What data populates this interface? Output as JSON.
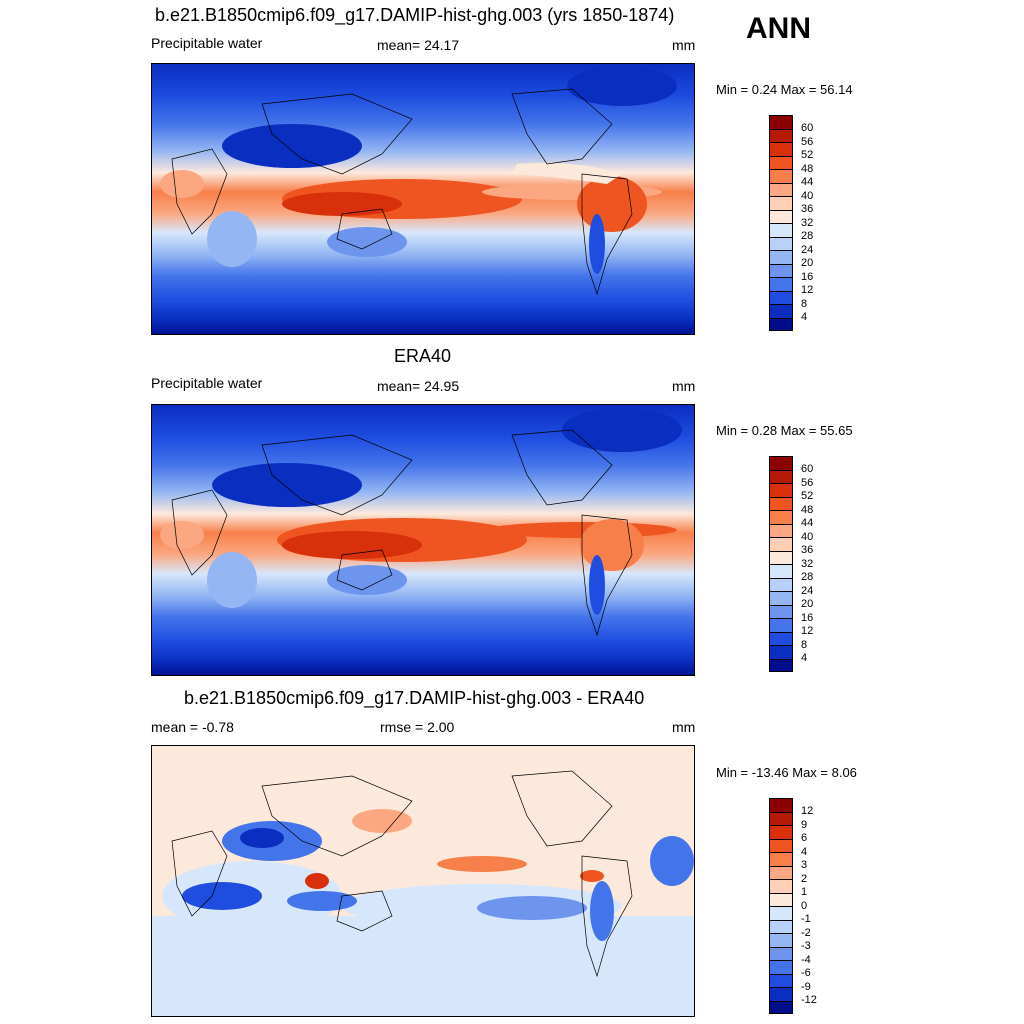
{
  "season": "ANN",
  "panels": [
    {
      "id": "model",
      "title": "b.e21.B1850cmip6.f09_g17.DAMIP-hist-ghg.003 (yrs 1850-1874)",
      "left_label": "Precipitable water",
      "center_label": "mean=  24.17",
      "units": "mm",
      "minmax": "Min =   0.24 Max =  56.14",
      "kind": "abs"
    },
    {
      "id": "obs",
      "title": "ERA40",
      "left_label": "Precipitable water",
      "center_label": "mean=  24.95",
      "units": "mm",
      "minmax": "Min =   0.28 Max =  55.65",
      "kind": "abs"
    },
    {
      "id": "diff",
      "title": "b.e21.B1850cmip6.f09_g17.DAMIP-hist-ghg.003 - ERA40",
      "left_label": "mean =  -0.78",
      "center_label": "rmse =   2.00",
      "units": "mm",
      "minmax": "Min = -13.46 Max =   8.06",
      "kind": "diff"
    }
  ],
  "colorbars": {
    "abs": {
      "labels": [
        "60",
        "56",
        "52",
        "48",
        "44",
        "40",
        "36",
        "32",
        "28",
        "24",
        "20",
        "16",
        "12",
        "8",
        "4"
      ],
      "colors": [
        "#8b0000",
        "#b51a05",
        "#d8300a",
        "#ee5520",
        "#f7804a",
        "#fba882",
        "#fdcfb5",
        "#fde9dc",
        "#d7e7fb",
        "#b7d1f8",
        "#94b6f3",
        "#6d95ee",
        "#4474ea",
        "#1e4de0",
        "#0a2ec0",
        "#000e8c"
      ]
    },
    "diff": {
      "labels": [
        "12",
        "9",
        "6",
        "4",
        "3",
        "2",
        "1",
        "0",
        "-1",
        "-2",
        "-3",
        "-4",
        "-6",
        "-9",
        "-12"
      ],
      "colors": [
        "#8b0000",
        "#b51a05",
        "#d8300a",
        "#ee5520",
        "#f7804a",
        "#fba882",
        "#fdcfb5",
        "#fde9dc",
        "#d7e7fb",
        "#b7d1f8",
        "#94b6f3",
        "#6d95ee",
        "#4474ea",
        "#1e4de0",
        "#0a2ec0",
        "#000e8c"
      ]
    }
  }
}
